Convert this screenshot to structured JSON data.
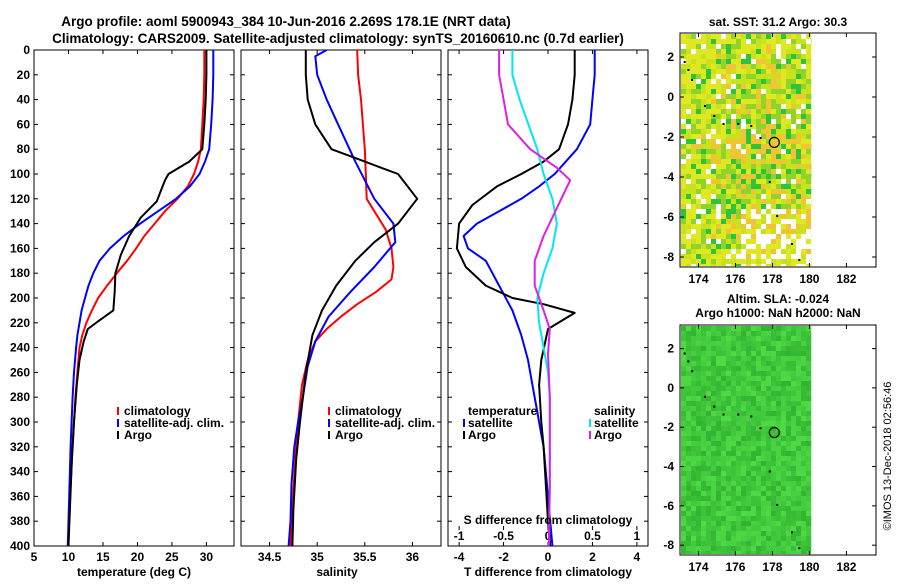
{
  "header": {
    "line1": "Argo profile: aoml 5900943_384 10-Jun-2016 2.269S 178.1E (NRT data)",
    "line2": "Climatology: CARS2009. Satellite-adjusted climatology: synTS_20160610.nc (0.7d earlier)"
  },
  "footer": {
    "stamp": "©IMOS 13-Dec-2018 02:56:46"
  },
  "colors": {
    "clim": "#ff0000",
    "sat": "#0000ff",
    "argo": "#000000",
    "sat_s": "#00e5ff",
    "argo_s": "#e020e0"
  },
  "depth_ticks": [
    0,
    20,
    40,
    60,
    80,
    100,
    120,
    140,
    160,
    180,
    200,
    220,
    240,
    260,
    280,
    300,
    320,
    340,
    360,
    380,
    400
  ],
  "chart_data": [
    {
      "type": "line",
      "title": "temperature",
      "xlabel": "temperature (deg C)",
      "ylabel": "depth",
      "xlim": [
        5,
        34
      ],
      "ylim": [
        400,
        0
      ],
      "xticks": [
        5,
        10,
        15,
        20,
        25,
        30
      ],
      "legend": {
        "position": "bottom-right",
        "entries": [
          "climatology",
          "satellite-adj. clim.",
          "Argo"
        ]
      },
      "series": [
        {
          "name": "climatology",
          "color": "#ff0000",
          "x": [
            29.7,
            29.7,
            29.6,
            29.4,
            29.2,
            28.8,
            28.2,
            27.3,
            25.8,
            24.0,
            22.5,
            21.0,
            19.8,
            18.5,
            17.0,
            15.6,
            14.3,
            13.4,
            12.6,
            12.0,
            11.6,
            11.3,
            11.0,
            10.8,
            10.6,
            10.3,
            10.1,
            9.9
          ],
          "y": [
            0,
            20,
            40,
            60,
            80,
            90,
            100,
            110,
            120,
            130,
            140,
            150,
            160,
            170,
            180,
            190,
            200,
            210,
            220,
            230,
            240,
            260,
            280,
            300,
            320,
            350,
            380,
            400
          ]
        },
        {
          "name": "satellite-adj. clim.",
          "color": "#0000ff",
          "x": [
            31.0,
            31.0,
            30.9,
            30.7,
            30.4,
            29.8,
            29.0,
            27.6,
            25.6,
            23.0,
            20.4,
            18.0,
            16.0,
            14.5,
            13.6,
            12.9,
            12.4,
            11.9,
            11.6,
            11.3,
            11.1,
            10.8,
            10.6,
            10.3,
            10.1,
            9.9
          ],
          "y": [
            0,
            20,
            40,
            60,
            80,
            90,
            100,
            110,
            120,
            130,
            140,
            150,
            160,
            170,
            180,
            190,
            200,
            210,
            220,
            230,
            240,
            260,
            280,
            320,
            360,
            400
          ]
        },
        {
          "name": "Argo",
          "color": "#000000",
          "x": [
            30.0,
            30.0,
            29.9,
            29.7,
            29.4,
            27.5,
            24.5,
            24.0,
            23.5,
            22.8,
            20.5,
            18.8,
            17.6,
            16.8,
            16.7,
            16.5,
            14.5,
            12.8,
            12.2,
            11.6,
            11.2,
            10.8,
            10.5,
            10.2,
            10.0
          ],
          "y": [
            0,
            20,
            40,
            60,
            80,
            90,
            100,
            105,
            112,
            122,
            135,
            150,
            165,
            180,
            195,
            210,
            218,
            225,
            235,
            250,
            270,
            300,
            330,
            370,
            400
          ]
        }
      ]
    },
    {
      "type": "line",
      "title": "salinity",
      "xlabel": "salinity",
      "ylabel": "depth",
      "xlim": [
        34.2,
        36.3
      ],
      "ylim": [
        400,
        0
      ],
      "xticks": [
        34.5,
        35,
        35.5,
        36
      ],
      "legend": {
        "position": "bottom-right",
        "entries": [
          "climatology",
          "satellite-adj. clim.",
          "Argo"
        ]
      },
      "series": [
        {
          "name": "climatology",
          "color": "#ff0000",
          "x": [
            35.42,
            35.43,
            35.46,
            35.48,
            35.5,
            35.51,
            35.52,
            35.6,
            35.72,
            35.78,
            35.8,
            35.78,
            35.62,
            35.42,
            35.25,
            35.1,
            34.98,
            34.9,
            34.84,
            34.8,
            34.77,
            34.74,
            34.72
          ],
          "y": [
            0,
            20,
            40,
            60,
            80,
            100,
            120,
            130,
            145,
            160,
            175,
            185,
            195,
            205,
            215,
            225,
            235,
            250,
            270,
            300,
            330,
            370,
            400
          ]
        },
        {
          "name": "satellite-adj. clim.",
          "color": "#0000ff",
          "x": [
            35.1,
            34.98,
            35.0,
            35.1,
            35.22,
            35.4,
            35.6,
            35.8,
            35.82,
            35.6,
            35.35,
            35.12,
            34.98,
            34.9,
            34.85,
            34.8,
            34.76,
            34.73,
            34.72,
            34.7
          ],
          "y": [
            0,
            5,
            20,
            40,
            60,
            90,
            120,
            140,
            155,
            175,
            195,
            215,
            235,
            255,
            280,
            300,
            320,
            350,
            380,
            400
          ]
        },
        {
          "name": "Argo",
          "color": "#000000",
          "x": [
            34.88,
            34.88,
            34.9,
            34.98,
            35.15,
            35.5,
            35.85,
            36.05,
            35.85,
            35.6,
            35.4,
            35.2,
            35.05,
            34.95,
            34.88,
            34.82,
            34.78,
            34.75,
            34.74
          ],
          "y": [
            0,
            20,
            40,
            60,
            80,
            90,
            100,
            120,
            140,
            155,
            170,
            190,
            210,
            230,
            260,
            300,
            330,
            370,
            400
          ]
        }
      ]
    },
    {
      "type": "line",
      "title": "difference from climatology",
      "xlabel": "T difference from climatology",
      "xlabel_top": "S difference from climatology",
      "ylabel": "depth",
      "xlim": [
        -4.5,
        4.5
      ],
      "xlim_s": [
        -1.125,
        1.125
      ],
      "ylim": [
        400,
        0
      ],
      "xticks": [
        -4,
        -2,
        0,
        2,
        4
      ],
      "xticks_s": [
        -1,
        -0.5,
        0,
        0.5,
        1
      ],
      "xticklabels_s": [
        "-1",
        "-0.5",
        "0",
        "0.5",
        "1"
      ],
      "legend_temperature": {
        "title": "temperature",
        "entries": [
          "satellite",
          "Argo"
        ]
      },
      "legend_salinity": {
        "title": "salinity",
        "entries": [
          "satellite",
          "Argo"
        ]
      },
      "series": [
        {
          "name": "T satellite",
          "color": "#0000ff",
          "axis": "T",
          "x": [
            2.1,
            2.1,
            2.0,
            1.9,
            1.3,
            0.8,
            0.3,
            -0.4,
            -1.2,
            -2.2,
            -3.2,
            -3.8,
            -3.6,
            -2.8,
            -2.2,
            -1.6,
            -1.2,
            -0.9,
            -0.7,
            -0.5,
            -0.3,
            -0.2,
            -0.1,
            0.0,
            0.1,
            0.2
          ],
          "y": [
            0,
            20,
            40,
            60,
            80,
            90,
            100,
            110,
            120,
            130,
            140,
            150,
            160,
            170,
            190,
            210,
            230,
            250,
            270,
            290,
            310,
            320,
            340,
            360,
            380,
            400
          ]
        },
        {
          "name": "T Argo",
          "color": "#000000",
          "axis": "T",
          "x": [
            1.2,
            1.2,
            1.1,
            0.9,
            0.5,
            -0.2,
            -1.2,
            -2.3,
            -3.4,
            -4.0,
            -4.1,
            -3.7,
            -2.8,
            -1.6,
            -0.2,
            1.2,
            0.0,
            -0.3,
            -0.4,
            -0.3,
            -0.2,
            -0.1,
            0.0,
            0.1
          ],
          "y": [
            0,
            20,
            40,
            60,
            80,
            90,
            100,
            110,
            125,
            140,
            160,
            175,
            190,
            200,
            205,
            212,
            225,
            250,
            270,
            300,
            320,
            350,
            380,
            400
          ]
        },
        {
          "name": "S satellite",
          "color": "#00e5ff",
          "axis": "S",
          "x": [
            -0.4,
            -0.4,
            -0.32,
            -0.22,
            -0.12,
            -0.05,
            0.05,
            0.1,
            0.05,
            -0.05,
            -0.12,
            -0.1,
            -0.05,
            0.0,
            0.02,
            0.02,
            0.02,
            0.01
          ],
          "y": [
            0,
            20,
            40,
            60,
            80,
            100,
            120,
            140,
            160,
            180,
            200,
            220,
            240,
            260,
            280,
            300,
            350,
            400
          ]
        },
        {
          "name": "S Argo",
          "color": "#e020e0",
          "axis": "S",
          "x": [
            -0.55,
            -0.55,
            -0.5,
            -0.45,
            -0.2,
            0.1,
            0.25,
            0.15,
            0.05,
            -0.05,
            -0.15,
            -0.15,
            -0.05,
            0.02,
            0.0,
            0.02,
            0.02,
            0.02,
            0.01
          ],
          "y": [
            0,
            20,
            40,
            60,
            80,
            95,
            105,
            120,
            135,
            150,
            170,
            190,
            210,
            225,
            245,
            280,
            300,
            350,
            400
          ]
        }
      ]
    }
  ],
  "maps": {
    "sst": {
      "title": "sat. SST: 31.2 Argo: 30.3",
      "xticks": [
        "174",
        "176",
        "178",
        "180",
        "182"
      ],
      "yticks": [
        "2",
        "0",
        "-2",
        "-4",
        "-6",
        "-8"
      ],
      "xlim": [
        173,
        183.6
      ],
      "ylim": [
        -8.5,
        3.2
      ],
      "argo_lon": 178.1,
      "argo_lat": -2.269
    },
    "sla": {
      "title1": "Altim. SLA: -0.024",
      "title2": "Argo h1000: NaN h2000: NaN",
      "xticks": [
        "174",
        "176",
        "178",
        "180",
        "182"
      ],
      "yticks": [
        "2",
        "0",
        "-2",
        "-4",
        "-6",
        "-8"
      ],
      "xlim": [
        173,
        183.6
      ],
      "ylim": [
        -8.5,
        3.2
      ],
      "argo_lon": 178.1,
      "argo_lat": -2.269
    }
  }
}
